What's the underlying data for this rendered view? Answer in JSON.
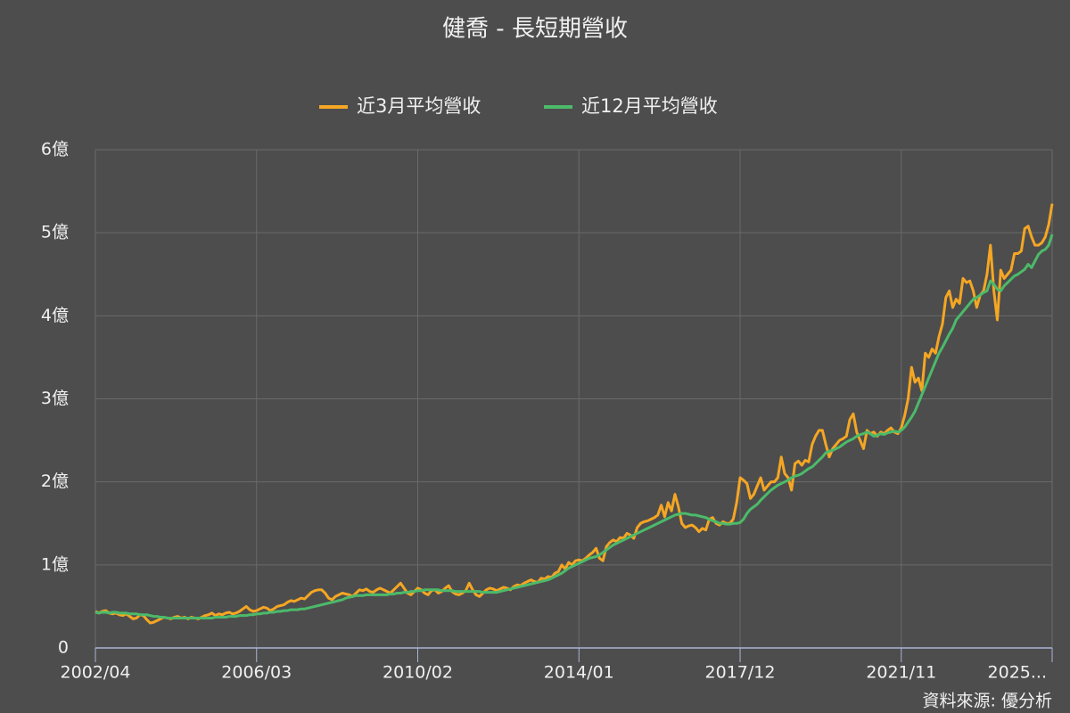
{
  "chart_data": {
    "type": "line",
    "title": "健喬 - 長短期營收",
    "source": "資料來源: 優分析",
    "categories": [
      "2002/04",
      null,
      null,
      null,
      null,
      null,
      null,
      null,
      null,
      null,
      null,
      null,
      null,
      null,
      null,
      null,
      null,
      null,
      null,
      null,
      null,
      null,
      null,
      null,
      null,
      null,
      null,
      null,
      null,
      null,
      null,
      null,
      null,
      null,
      null,
      null,
      null,
      null,
      null,
      null,
      null,
      null,
      null,
      null,
      null,
      null,
      null,
      "2006/03",
      null,
      null,
      null,
      null,
      null,
      null,
      null,
      null,
      null,
      null,
      null,
      null,
      null,
      null,
      null,
      null,
      null,
      null,
      null,
      null,
      null,
      null,
      null,
      null,
      null,
      null,
      null,
      null,
      null,
      null,
      null,
      null,
      null,
      null,
      null,
      null,
      null,
      null,
      null,
      null,
      null,
      null,
      null,
      null,
      null,
      null,
      "2010/02",
      null,
      null,
      null,
      null,
      null,
      null,
      null,
      null,
      null,
      null,
      null,
      null,
      null,
      null,
      null,
      null,
      null,
      null,
      null,
      null,
      null,
      null,
      null,
      null,
      null,
      null,
      null,
      null,
      null,
      null,
      null,
      null,
      null,
      null,
      null,
      null,
      null,
      null,
      null,
      null,
      null,
      null,
      null,
      null,
      null,
      null,
      "2014/01",
      null,
      null,
      null,
      null,
      null,
      null,
      null,
      null,
      null,
      null,
      null,
      null,
      null,
      null,
      null,
      null,
      null,
      null,
      null,
      null,
      null,
      null,
      null,
      null,
      null,
      null,
      null,
      null,
      null,
      null,
      null,
      null,
      null,
      null,
      null,
      null,
      null,
      null,
      null,
      null,
      null,
      null,
      null,
      null,
      null,
      null,
      "2017/12",
      null,
      null,
      null,
      null,
      null,
      null,
      null,
      null,
      null,
      null,
      null,
      null,
      null,
      null,
      null,
      null,
      null,
      null,
      null,
      null,
      null,
      null,
      null,
      null,
      null,
      null,
      null,
      null,
      null,
      null,
      null,
      null,
      null,
      null,
      null,
      null,
      null,
      null,
      null,
      null,
      null,
      null,
      null,
      null,
      null,
      null,
      "2021/11",
      null,
      null,
      null,
      null,
      null,
      null,
      null,
      null,
      null,
      null,
      null,
      null,
      null,
      null,
      null,
      null,
      null,
      null,
      null,
      null,
      null,
      null,
      null,
      null,
      null,
      null,
      null,
      null,
      null,
      null,
      null,
      null,
      null,
      null,
      null,
      null,
      null,
      null,
      null,
      null,
      null,
      null,
      null,
      "2025..."
    ],
    "series": [
      {
        "name": "近3月平均營收",
        "color": "#f5a623",
        "values": [
          0.44,
          0.42,
          0.44,
          0.45,
          0.42,
          0.41,
          0.42,
          0.4,
          0.39,
          0.41,
          0.38,
          0.35,
          0.36,
          0.4,
          0.39,
          0.34,
          0.3,
          0.31,
          0.33,
          0.35,
          0.37,
          0.36,
          0.35,
          0.37,
          0.38,
          0.36,
          0.37,
          0.35,
          0.37,
          0.36,
          0.35,
          0.37,
          0.39,
          0.4,
          0.42,
          0.39,
          0.41,
          0.4,
          0.42,
          0.43,
          0.41,
          0.42,
          0.44,
          0.47,
          0.5,
          0.46,
          0.44,
          0.45,
          0.47,
          0.49,
          0.48,
          0.45,
          0.47,
          0.5,
          0.51,
          0.52,
          0.55,
          0.57,
          0.56,
          0.58,
          0.6,
          0.59,
          0.63,
          0.67,
          0.69,
          0.7,
          0.7,
          0.66,
          0.6,
          0.58,
          0.62,
          0.64,
          0.66,
          0.65,
          0.64,
          0.62,
          0.66,
          0.7,
          0.69,
          0.71,
          0.68,
          0.67,
          0.7,
          0.72,
          0.7,
          0.68,
          0.66,
          0.7,
          0.74,
          0.78,
          0.72,
          0.66,
          0.64,
          0.68,
          0.72,
          0.7,
          0.66,
          0.64,
          0.69,
          0.7,
          0.66,
          0.68,
          0.72,
          0.75,
          0.68,
          0.65,
          0.64,
          0.66,
          0.69,
          0.78,
          0.7,
          0.64,
          0.62,
          0.66,
          0.7,
          0.72,
          0.71,
          0.69,
          0.71,
          0.73,
          0.72,
          0.7,
          0.74,
          0.76,
          0.75,
          0.78,
          0.8,
          0.82,
          0.8,
          0.79,
          0.84,
          0.83,
          0.86,
          0.85,
          0.9,
          0.92,
          1.0,
          0.95,
          1.03,
          1.0,
          1.05,
          1.06,
          1.05,
          1.08,
          1.12,
          1.15,
          1.2,
          1.08,
          1.05,
          1.22,
          1.27,
          1.3,
          1.28,
          1.33,
          1.32,
          1.38,
          1.36,
          1.32,
          1.45,
          1.5,
          1.52,
          1.53,
          1.55,
          1.57,
          1.6,
          1.72,
          1.58,
          1.75,
          1.65,
          1.85,
          1.7,
          1.5,
          1.45,
          1.47,
          1.48,
          1.45,
          1.4,
          1.44,
          1.42,
          1.55,
          1.57,
          1.5,
          1.48,
          1.52,
          1.5,
          1.5,
          1.55,
          1.75,
          2.05,
          2.02,
          1.98,
          1.8,
          1.85,
          1.95,
          2.05,
          1.9,
          1.95,
          2.0,
          2.0,
          2.05,
          2.3,
          2.1,
          2.05,
          1.9,
          2.22,
          2.25,
          2.2,
          2.26,
          2.24,
          2.45,
          2.55,
          2.62,
          2.62,
          2.45,
          2.3,
          2.4,
          2.45,
          2.5,
          2.52,
          2.55,
          2.75,
          2.82,
          2.6,
          2.5,
          2.4,
          2.62,
          2.58,
          2.6,
          2.55,
          2.6,
          2.58,
          2.62,
          2.65,
          2.6,
          2.58,
          2.65,
          2.8,
          3.0,
          3.38,
          3.2,
          3.25,
          3.1,
          3.55,
          3.5,
          3.6,
          3.55,
          3.75,
          3.9,
          4.22,
          4.3,
          4.1,
          4.2,
          4.15,
          4.45,
          4.4,
          4.42,
          4.3,
          4.1,
          4.25,
          4.3,
          4.5,
          4.85,
          4.3,
          3.95,
          4.55,
          4.45,
          4.5,
          4.55,
          4.75,
          4.75,
          4.78,
          5.05,
          5.08,
          4.95,
          4.85,
          4.85,
          4.88,
          4.95,
          5.1,
          5.35
        ]
      },
      {
        "name": "近12月平均營收",
        "color": "#4cba6a",
        "values": [
          0.43,
          0.42,
          0.43,
          0.43,
          0.42,
          0.43,
          0.43,
          0.42,
          0.42,
          0.42,
          0.41,
          0.41,
          0.41,
          0.4,
          0.4,
          0.4,
          0.39,
          0.38,
          0.38,
          0.37,
          0.37,
          0.36,
          0.36,
          0.36,
          0.36,
          0.36,
          0.36,
          0.36,
          0.36,
          0.36,
          0.36,
          0.36,
          0.36,
          0.36,
          0.36,
          0.37,
          0.37,
          0.37,
          0.37,
          0.38,
          0.38,
          0.38,
          0.39,
          0.39,
          0.39,
          0.4,
          0.4,
          0.41,
          0.41,
          0.42,
          0.42,
          0.43,
          0.43,
          0.44,
          0.44,
          0.45,
          0.45,
          0.46,
          0.46,
          0.46,
          0.47,
          0.47,
          0.48,
          0.49,
          0.5,
          0.51,
          0.52,
          0.53,
          0.54,
          0.55,
          0.56,
          0.57,
          0.58,
          0.6,
          0.61,
          0.62,
          0.63,
          0.63,
          0.63,
          0.64,
          0.64,
          0.64,
          0.64,
          0.64,
          0.64,
          0.64,
          0.65,
          0.65,
          0.66,
          0.66,
          0.67,
          0.67,
          0.68,
          0.68,
          0.69,
          0.69,
          0.7,
          0.7,
          0.7,
          0.7,
          0.7,
          0.69,
          0.69,
          0.69,
          0.69,
          0.68,
          0.68,
          0.68,
          0.68,
          0.68,
          0.68,
          0.68,
          0.68,
          0.67,
          0.67,
          0.67,
          0.67,
          0.67,
          0.68,
          0.69,
          0.7,
          0.71,
          0.72,
          0.73,
          0.74,
          0.75,
          0.76,
          0.77,
          0.78,
          0.79,
          0.8,
          0.81,
          0.82,
          0.84,
          0.86,
          0.88,
          0.9,
          0.93,
          0.96,
          0.98,
          1.0,
          1.02,
          1.04,
          1.06,
          1.08,
          1.09,
          1.1,
          1.12,
          1.15,
          1.18,
          1.21,
          1.24,
          1.26,
          1.28,
          1.3,
          1.32,
          1.34,
          1.36,
          1.38,
          1.4,
          1.42,
          1.44,
          1.46,
          1.48,
          1.5,
          1.52,
          1.54,
          1.56,
          1.58,
          1.6,
          1.61,
          1.62,
          1.62,
          1.61,
          1.6,
          1.6,
          1.59,
          1.58,
          1.57,
          1.55,
          1.53,
          1.52,
          1.5,
          1.5,
          1.49,
          1.49,
          1.5,
          1.5,
          1.51,
          1.55,
          1.62,
          1.67,
          1.7,
          1.73,
          1.78,
          1.82,
          1.86,
          1.9,
          1.93,
          1.96,
          1.98,
          2.0,
          2.02,
          2.05,
          2.07,
          2.08,
          2.1,
          2.13,
          2.16,
          2.18,
          2.22,
          2.26,
          2.3,
          2.35,
          2.37,
          2.38,
          2.4,
          2.42,
          2.45,
          2.48,
          2.5,
          2.52,
          2.55,
          2.57,
          2.58,
          2.6,
          2.58,
          2.55,
          2.56,
          2.58,
          2.57,
          2.59,
          2.6,
          2.61,
          2.6,
          2.62,
          2.66,
          2.72,
          2.78,
          2.85,
          2.95,
          3.05,
          3.15,
          3.25,
          3.35,
          3.45,
          3.55,
          3.62,
          3.7,
          3.78,
          3.85,
          3.95,
          4.0,
          4.05,
          4.1,
          4.15,
          4.2,
          4.22,
          4.25,
          4.28,
          4.3,
          4.42,
          4.38,
          4.32,
          4.3,
          4.36,
          4.4,
          4.44,
          4.48,
          4.5,
          4.53,
          4.56,
          4.62,
          4.58,
          4.66,
          4.74,
          4.78,
          4.8,
          4.85,
          4.98
        ]
      }
    ],
    "ylim": [
      0,
      6
    ],
    "yticks": [
      0,
      {
        "value": 1,
        "label": "1億"
      },
      {
        "value": 2,
        "label": "2億"
      },
      {
        "value": 3,
        "label": "3億"
      },
      {
        "value": 4,
        "label": "4億"
      },
      {
        "value": 5,
        "label": "5億"
      },
      {
        "value": 6,
        "label": "6億"
      }
    ],
    "grid": true,
    "legend": "top"
  }
}
